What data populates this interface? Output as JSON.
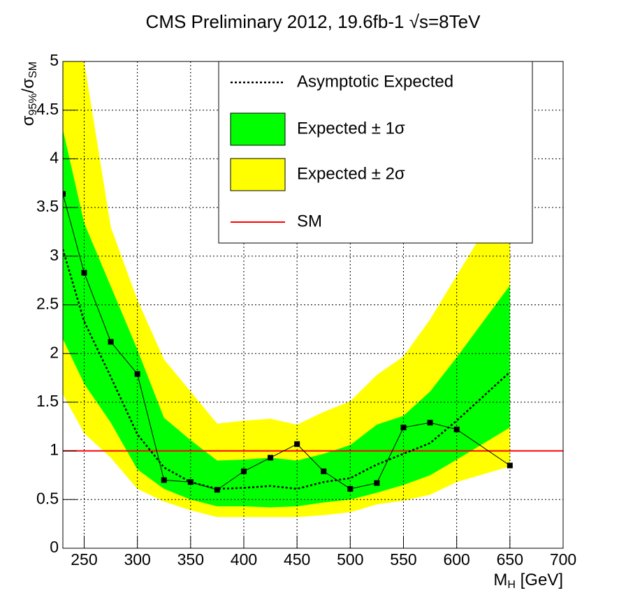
{
  "chart_data": {
    "type": "line",
    "title": "CMS Preliminary 2012, 19.6fb-1  √s=8TeV",
    "xlabel": [
      "M",
      "H",
      " [GeV]"
    ],
    "ylabel": [
      "σ",
      "95%",
      "/σ",
      "SM"
    ],
    "x": [
      230,
      250,
      275,
      300,
      325,
      350,
      375,
      400,
      425,
      450,
      475,
      500,
      525,
      550,
      575,
      600,
      650
    ],
    "series": [
      {
        "color": "#000000",
        "values": [
          3.64,
          2.83,
          2.12,
          1.79,
          0.7,
          0.68,
          0.6,
          0.79,
          0.93,
          1.07,
          0.79,
          0.61,
          0.67,
          1.24,
          1.29,
          1.22,
          0.85
        ]
      },
      {
        "name": "Asymptotic Expected",
        "color": "#000000",
        "values": [
          3.07,
          2.33,
          1.76,
          1.17,
          0.83,
          0.68,
          0.61,
          0.62,
          0.64,
          0.61,
          0.68,
          0.72,
          0.86,
          0.97,
          1.08,
          1.31,
          1.81
        ]
      }
    ],
    "band_1sigma": {
      "name": "Expected ± 1σ",
      "color": "#00ff00",
      "upper": [
        4.3,
        3.34,
        2.69,
        2.04,
        1.34,
        1.11,
        0.9,
        0.91,
        0.93,
        0.9,
        0.97,
        1.06,
        1.27,
        1.36,
        1.61,
        1.96,
        2.7
      ],
      "lower": [
        2.15,
        1.69,
        1.29,
        0.81,
        0.61,
        0.5,
        0.43,
        0.43,
        0.42,
        0.43,
        0.47,
        0.5,
        0.57,
        0.65,
        0.75,
        0.91,
        1.24
      ]
    },
    "band_2sigma": {
      "name": "Expected ± 2σ",
      "color": "#ffff00",
      "upper": [
        5.25,
        5.0,
        3.3,
        2.55,
        1.94,
        1.61,
        1.28,
        1.31,
        1.33,
        1.27,
        1.4,
        1.51,
        1.78,
        1.97,
        2.35,
        2.8,
        3.7
      ],
      "lower": [
        1.58,
        1.18,
        0.93,
        0.61,
        0.48,
        0.39,
        0.32,
        0.32,
        0.32,
        0.32,
        0.34,
        0.37,
        0.45,
        0.49,
        0.55,
        0.68,
        0.84
      ]
    },
    "reference": {
      "name": "SM",
      "value": 1,
      "color": "#ff0000"
    },
    "xlim": [
      230,
      700
    ],
    "xticks": [
      250,
      300,
      350,
      400,
      450,
      500,
      550,
      600,
      650,
      700
    ],
    "ylim": [
      0,
      5
    ],
    "yticks": [
      0,
      0.5,
      1,
      1.5,
      2,
      2.5,
      3,
      3.5,
      4,
      4.5,
      5
    ],
    "grid": true
  }
}
